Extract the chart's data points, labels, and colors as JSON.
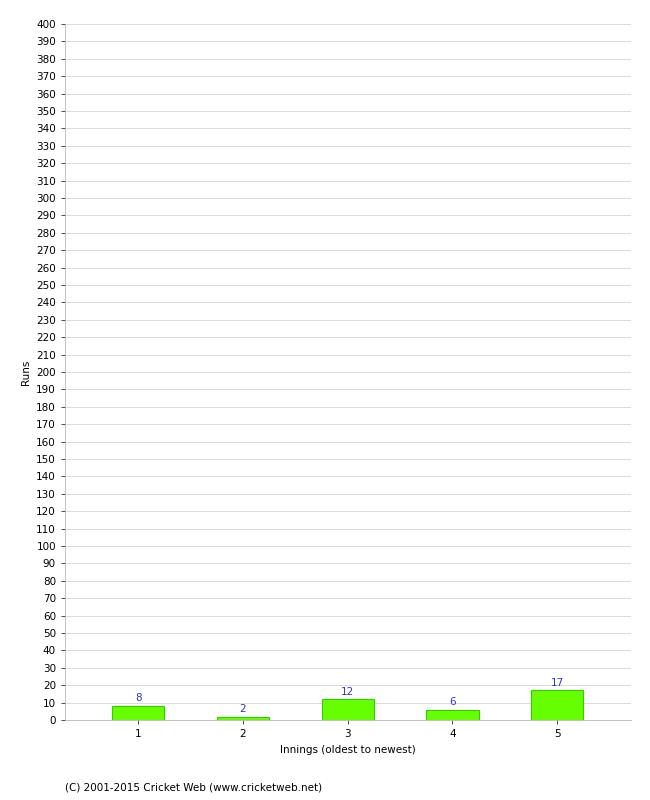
{
  "categories": [
    1,
    2,
    3,
    4,
    5
  ],
  "values": [
    8,
    2,
    12,
    6,
    17
  ],
  "bar_color": "#66ff00",
  "bar_edge_color": "#33cc00",
  "label_color": "#3333cc",
  "xlabel": "Innings (oldest to newest)",
  "ylabel": "Runs",
  "ylim": [
    0,
    400
  ],
  "background_color": "#ffffff",
  "grid_color": "#cccccc",
  "footnote": "(C) 2001-2015 Cricket Web (www.cricketweb.net)",
  "label_fontsize": 7.5,
  "axis_fontsize": 7.5,
  "ylabel_fontsize": 7.5,
  "footnote_fontsize": 7.5,
  "bar_width": 0.5
}
